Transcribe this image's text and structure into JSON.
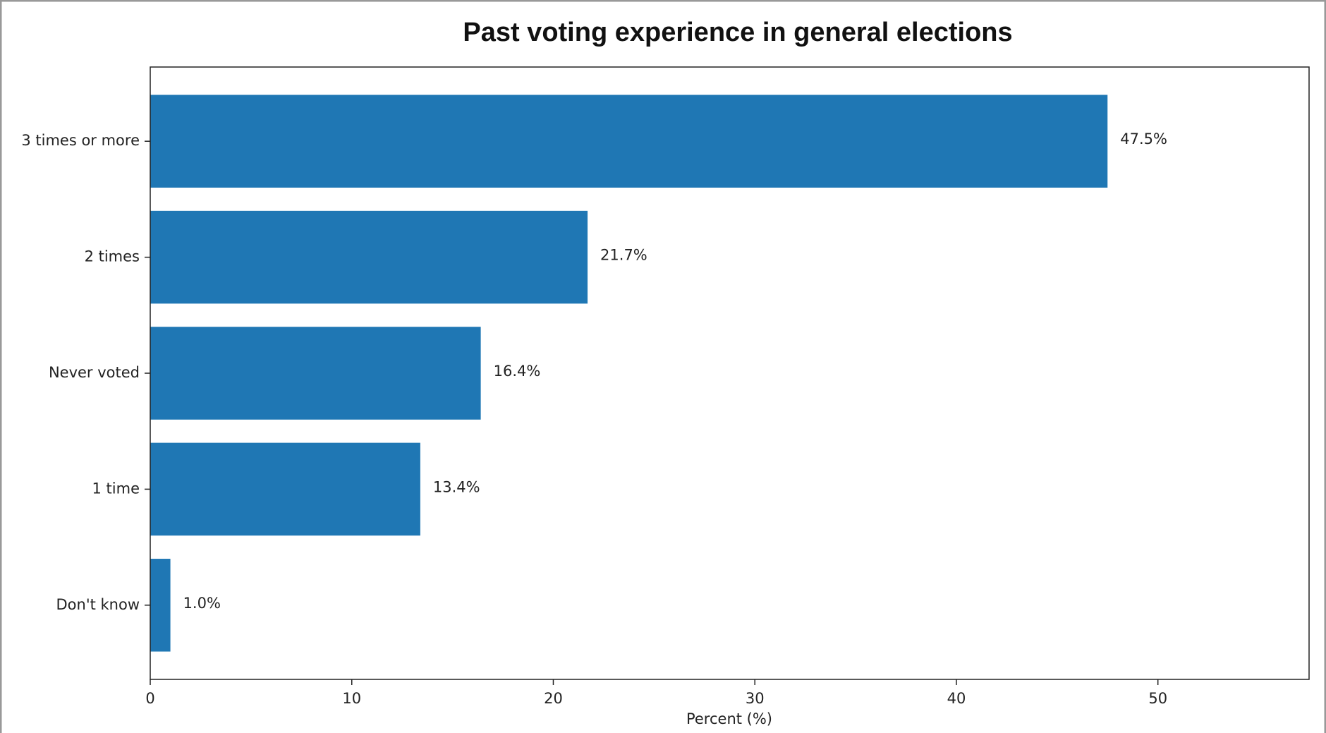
{
  "chart_data": {
    "type": "barh",
    "title": "Past voting experience in general elections",
    "xlabel": "Percent (%)",
    "categories": [
      "3 times or more",
      "2 times",
      "Never voted",
      "1 time",
      "Don't know"
    ],
    "values": [
      47.5,
      21.7,
      16.4,
      13.4,
      1.0
    ],
    "value_labels": [
      "47.5%",
      "21.7%",
      "16.4%",
      "13.4%",
      "1.0%"
    ],
    "color": "#1f77b4",
    "xlim": [
      0,
      57.5
    ],
    "xticks": [
      0,
      10,
      20,
      30,
      40,
      50
    ]
  }
}
